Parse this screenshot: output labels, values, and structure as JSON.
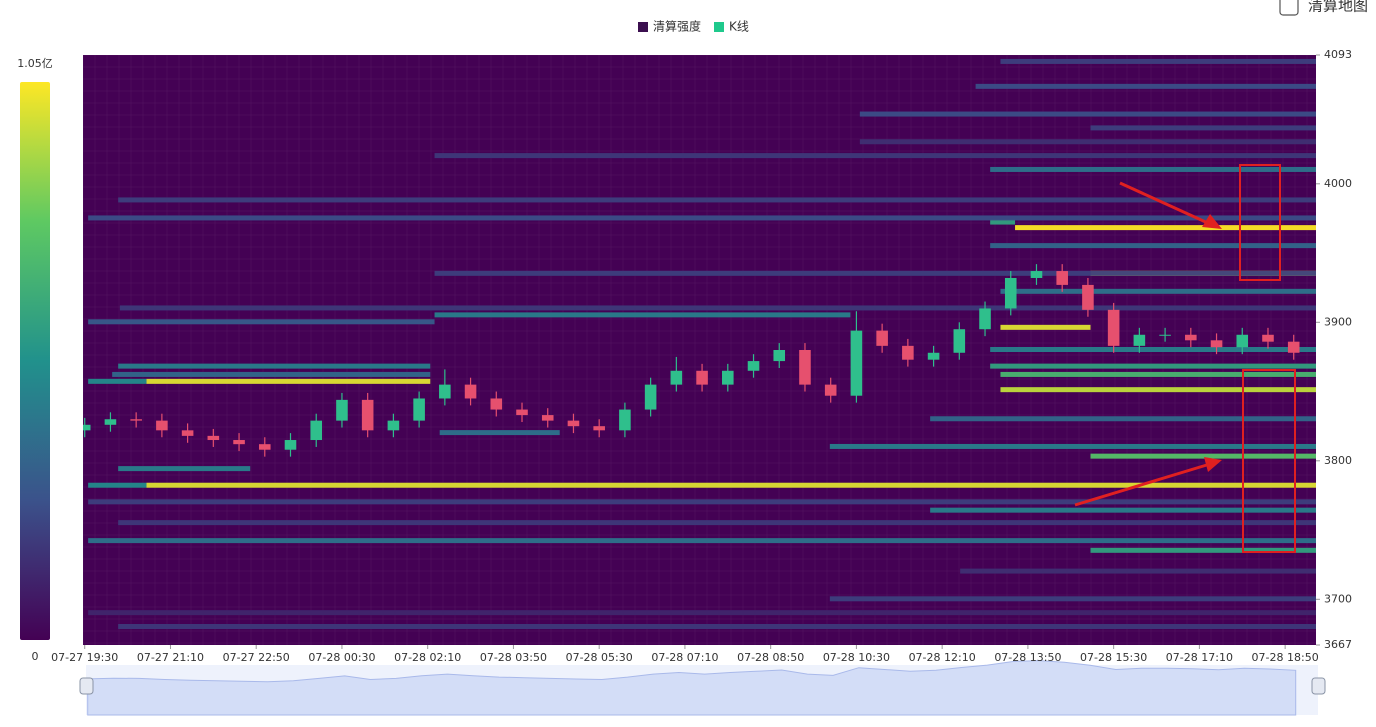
{
  "chart_data": {
    "type": "heatmap-candlestick",
    "legend": [
      {
        "name": "清算强度",
        "color": "#3b0f4f"
      },
      {
        "name": "K线",
        "color": "#1fc98c"
      }
    ],
    "toggle_label": "清算地图",
    "colorbar": {
      "lim": [
        0,
        105000000
      ],
      "ticks": [
        {
          "value": 105000000,
          "label": "1.05亿"
        },
        0
      ]
    },
    "xlim": [
      -2,
      1436
    ],
    "xticks": [
      {
        "value": 0,
        "label": "07-27 19:30"
      },
      {
        "value": 100,
        "label": "07-27 21:10"
      },
      {
        "value": 200,
        "label": "07-27 22:50"
      },
      {
        "value": 300,
        "label": "07-28 00:30"
      },
      {
        "value": 400,
        "label": "07-28 02:10"
      },
      {
        "value": 500,
        "label": "07-28 03:50"
      },
      {
        "value": 600,
        "label": "07-28 05:30"
      },
      {
        "value": 700,
        "label": "07-28 07:10"
      },
      {
        "value": 800,
        "label": "07-28 08:50"
      },
      {
        "value": 900,
        "label": "07-28 10:30"
      },
      {
        "value": 1000,
        "label": "07-28 12:10"
      },
      {
        "value": 1100,
        "label": "07-28 13:50"
      },
      {
        "value": 1200,
        "label": "07-28 15:30"
      },
      {
        "value": 1300,
        "label": "07-28 17:10"
      },
      {
        "value": 1400,
        "label": "07-28 18:50"
      }
    ],
    "ylim": [
      3667,
      4093
    ],
    "yticks": [
      4093,
      4000,
      3900,
      3800,
      3700,
      3667
    ],
    "bands": {
      "price": [
        3968,
        3972,
        3935,
        3896,
        3857,
        3857,
        3851,
        3782,
        3782,
        3922,
        3880,
        3868,
        3862,
        3810,
        3820,
        3830,
        3803,
        3794,
        3764,
        3742,
        3735,
        3905,
        3900,
        3868,
        3862,
        3988,
        3975,
        3935,
        4010,
        4050,
        4070,
        4088,
        4040,
        3955,
        3910,
        3700,
        3720,
        3680,
        3690,
        3770,
        3755,
        4030,
        4020
      ],
      "start": [
        1085,
        1056,
        1173,
        1068,
        72,
        4,
        1068,
        72,
        4,
        1068,
        1056,
        1056,
        1068,
        869,
        414,
        986,
        1173,
        39,
        986,
        4,
        1173,
        408,
        4,
        39,
        32,
        39,
        4,
        408,
        1056,
        904,
        1039,
        1068,
        1173,
        1056,
        41,
        869,
        1021,
        39,
        4,
        4,
        39,
        904,
        408
      ],
      "end": [
        1436,
        1085,
        1436,
        1173,
        403,
        72,
        1436,
        1436,
        72,
        1436,
        1436,
        1436,
        1436,
        1436,
        554,
        1436,
        1436,
        193,
        1436,
        1436,
        1436,
        893,
        408,
        403,
        403,
        1436,
        1436,
        1436,
        1436,
        1436,
        1436,
        1436,
        1436,
        1436,
        1436,
        1436,
        1436,
        1436,
        1436,
        1436,
        1436,
        1436,
        1436
      ],
      "intensity": [
        105000000,
        60000000,
        100000000,
        100000000,
        100000000,
        50000000,
        95000000,
        100000000,
        50000000,
        40000000,
        45000000,
        60000000,
        70000000,
        45000000,
        40000000,
        35000000,
        75000000,
        45000000,
        45000000,
        40000000,
        60000000,
        45000000,
        30000000,
        45000000,
        35000000,
        20000000,
        25000000,
        20000000,
        40000000,
        25000000,
        25000000,
        20000000,
        20000000,
        35000000,
        18000000,
        20000000,
        15000000,
        18000000,
        12000000,
        20000000,
        18000000,
        15000000,
        18000000
      ]
    },
    "candles": {
      "up_color": "#2fbf8c",
      "down_color": "#e6506e",
      "x": [
        0,
        30,
        60,
        90,
        120,
        150,
        180,
        210,
        240,
        270,
        300,
        330,
        360,
        390,
        420,
        450,
        480,
        510,
        540,
        570,
        600,
        630,
        660,
        690,
        720,
        750,
        780,
        810,
        840,
        870,
        900,
        930,
        960,
        990,
        1020,
        1050,
        1080,
        1110,
        1140,
        1170,
        1200,
        1230,
        1260,
        1290,
        1320,
        1350,
        1380,
        1410
      ],
      "open": [
        3822,
        3826,
        3830,
        3829,
        3822,
        3818,
        3815,
        3812,
        3808,
        3815,
        3829,
        3844,
        3822,
        3829,
        3845,
        3855,
        3845,
        3837,
        3833,
        3829,
        3825,
        3822,
        3837,
        3855,
        3865,
        3855,
        3865,
        3872,
        3880,
        3855,
        3847,
        3894,
        3883,
        3873,
        3878,
        3895,
        3910,
        3932,
        3937,
        3927,
        3909,
        3883,
        3891,
        3891,
        3887,
        3882,
        3891,
        3886
      ],
      "high": [
        3831,
        3835,
        3835,
        3834,
        3827,
        3823,
        3820,
        3817,
        3820,
        3834,
        3849,
        3849,
        3834,
        3850,
        3866,
        3860,
        3850,
        3842,
        3838,
        3834,
        3830,
        3842,
        3860,
        3875,
        3870,
        3870,
        3877,
        3885,
        3885,
        3860,
        3908,
        3899,
        3888,
        3883,
        3900,
        3915,
        3937,
        3942,
        3942,
        3932,
        3914,
        3896,
        3896,
        3896,
        3892,
        3896,
        3896,
        3891
      ],
      "low": [
        3817,
        3821,
        3824,
        3817,
        3813,
        3810,
        3807,
        3803,
        3803,
        3810,
        3824,
        3817,
        3817,
        3824,
        3840,
        3840,
        3832,
        3828,
        3824,
        3820,
        3817,
        3817,
        3832,
        3850,
        3850,
        3850,
        3860,
        3867,
        3850,
        3842,
        3842,
        3878,
        3868,
        3868,
        3873,
        3890,
        3905,
        3927,
        3922,
        3904,
        3878,
        3878,
        3886,
        3882,
        3877,
        3877,
        3881,
        3873
      ],
      "close": [
        3826,
        3830,
        3829,
        3822,
        3818,
        3815,
        3812,
        3808,
        3815,
        3829,
        3844,
        3822,
        3829,
        3845,
        3855,
        3845,
        3837,
        3833,
        3829,
        3825,
        3822,
        3837,
        3855,
        3865,
        3855,
        3865,
        3872,
        3880,
        3855,
        3847,
        3894,
        3883,
        3873,
        3878,
        3895,
        3910,
        3932,
        3937,
        3927,
        3909,
        3883,
        3891,
        3891,
        3887,
        3882,
        3891,
        3886,
        3878
      ]
    }
  }
}
